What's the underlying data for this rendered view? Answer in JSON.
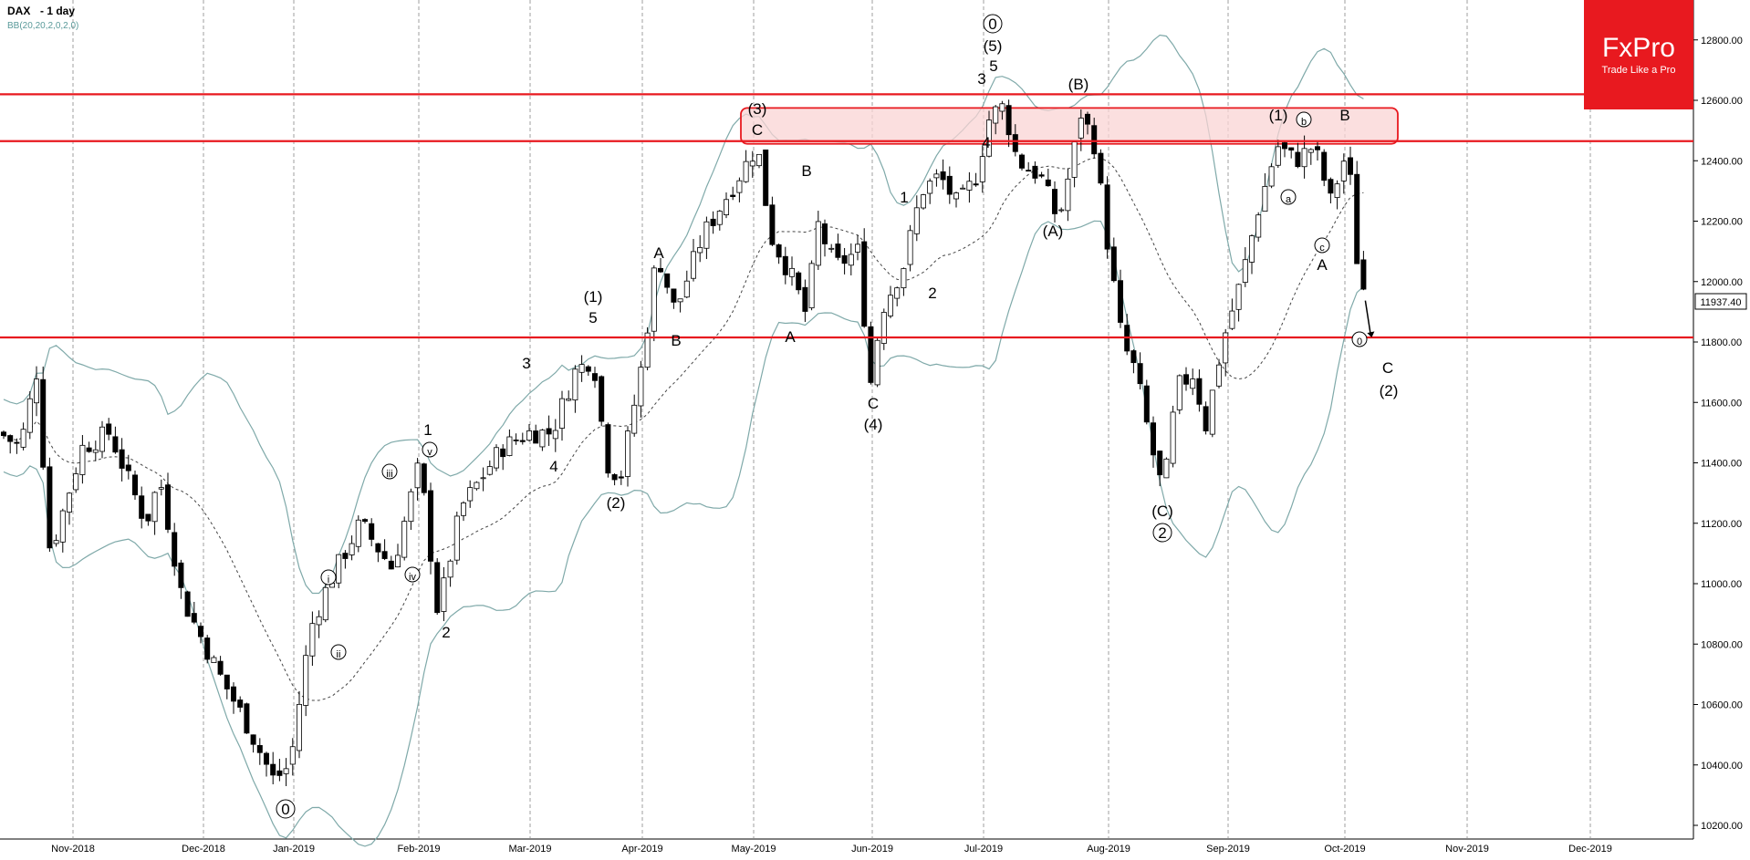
{
  "header": {
    "symbol": "DAX",
    "timeframe": "- 1 day",
    "indicator": "BB(20,20,2,0,2,0)"
  },
  "logo": {
    "brand": "FxPro",
    "tagline": "Trade Like a Pro",
    "color": "#e8191f"
  },
  "colors": {
    "candle_up": "#ffffff",
    "candle_down": "#000000",
    "bands": "#7fa9a9",
    "middle_band": "#444444",
    "level_line": "#e8191f",
    "zone_fill": "#f9d4d4",
    "grid": "#888888"
  },
  "chart_data": {
    "type": "candlestick",
    "title": "",
    "xlabel": "",
    "ylabel": "",
    "ylim": [
      10150,
      12950
    ],
    "y_ticks": [
      "12800.00",
      "12600.00",
      "12400.00",
      "12200.00",
      "12000.00",
      "11800.00",
      "11600.00",
      "11400.00",
      "11200.00",
      "11000.00",
      "10800.00",
      "10600.00",
      "10400.00",
      "10200.00"
    ],
    "x_ticks": [
      "Nov-2018",
      "Dec-2018",
      "Jan-2019",
      "Feb-2019",
      "Mar-2019",
      "Apr-2019",
      "May-2019",
      "Jun-2019",
      "Jul-2019",
      "Aug-2019",
      "Sep-2019",
      "Oct-2019",
      "Nov-2019",
      "Dec-2019"
    ],
    "current_price": "11937.40",
    "horizontal_levels": [
      12620,
      12465,
      11815
    ],
    "resistance_zone": {
      "from": 12465,
      "to": 12620,
      "start": "Apr-2019",
      "end": "Sep-2019"
    },
    "series": [
      {
        "name": "Close",
        "points": [
          [
            "Oct-2018",
            11550
          ],
          [
            "Nov-2018",
            11450
          ],
          [
            "Nov-2018",
            11520
          ],
          [
            "Dec-2018",
            11050
          ],
          [
            "Dec-2018",
            10650
          ],
          [
            "Jan-2019",
            10560
          ],
          [
            "Jan-2019",
            10900
          ],
          [
            "Jan-2019",
            11300
          ],
          [
            "Feb-2019",
            11050
          ],
          [
            "Feb-2019",
            11200
          ],
          [
            "Mar-2019",
            11600
          ],
          [
            "Mar-2019",
            11700
          ],
          [
            "Apr-2019",
            12000
          ],
          [
            "Apr-2019",
            12350
          ],
          [
            "May-2019",
            12100
          ],
          [
            "May-2019",
            11850
          ],
          [
            "Jun-2019",
            11950
          ],
          [
            "Jun-2019",
            12200
          ],
          [
            "Jul-2019",
            12560
          ],
          [
            "Jul-2019",
            12350
          ],
          [
            "Jul-2019",
            12450
          ],
          [
            "Aug-2019",
            11650
          ],
          [
            "Aug-2019",
            11300
          ],
          [
            "Sep-2019",
            11950
          ],
          [
            "Sep-2019",
            12400
          ],
          [
            "Oct-2019",
            12300
          ],
          [
            "Oct-2019",
            11937
          ]
        ]
      }
    ],
    "wave_labels": [
      "0",
      "i",
      "ii",
      "iii",
      "iv",
      "v",
      "1",
      "2",
      "3",
      "4",
      "(1)",
      "5",
      "(2)",
      "A",
      "B",
      "C",
      "(3)",
      "(4)",
      "(5)",
      "(A)",
      "(B)",
      "(C)",
      "a",
      "b",
      "c",
      "(2)"
    ]
  }
}
